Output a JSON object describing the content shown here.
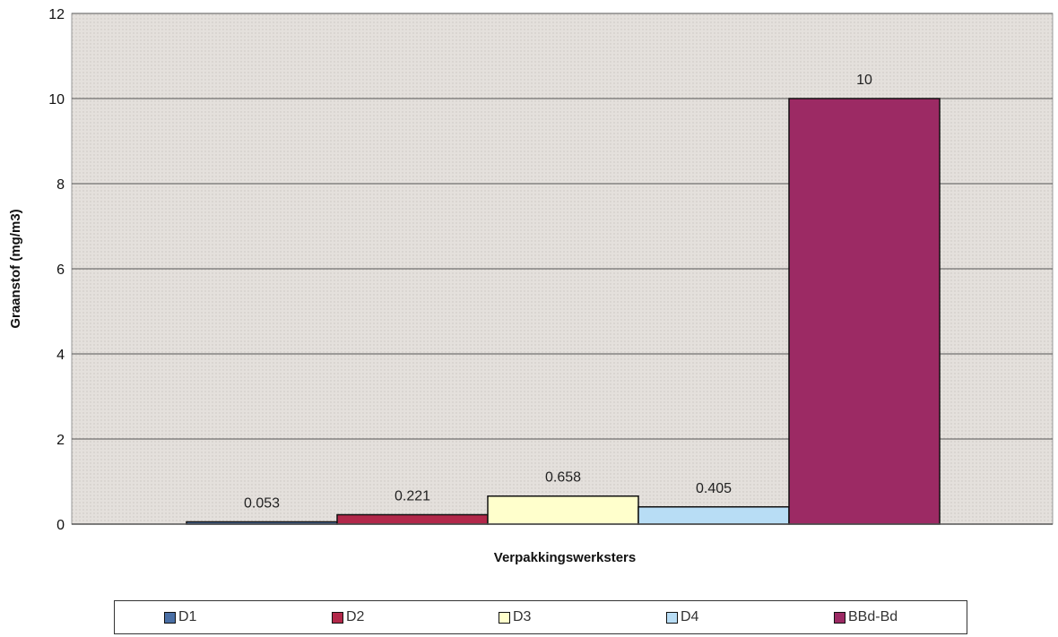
{
  "chart_data": {
    "type": "bar",
    "categories": [
      "D1",
      "D2",
      "D3",
      "D4",
      "BBd-Bd"
    ],
    "values": [
      0.053,
      0.221,
      0.658,
      0.405,
      10
    ],
    "data_labels": [
      "0.053",
      "0.221",
      "0.658",
      "0.405",
      "10"
    ],
    "colors": [
      "#4a6fa5",
      "#b2284a",
      "#ffffcc",
      "#b8ddf5",
      "#9c2a64"
    ],
    "xlabel": "Verpakkingswerksters",
    "ylabel": "Graanstof (mg/m3)",
    "ylim": [
      0,
      12
    ],
    "yticks": [
      "0",
      "2",
      "4",
      "6",
      "8",
      "10",
      "12"
    ],
    "grid": true,
    "legend_position": "bottom",
    "legend": [
      "D1",
      "D2",
      "D3",
      "D4",
      "BBd-Bd"
    ]
  }
}
